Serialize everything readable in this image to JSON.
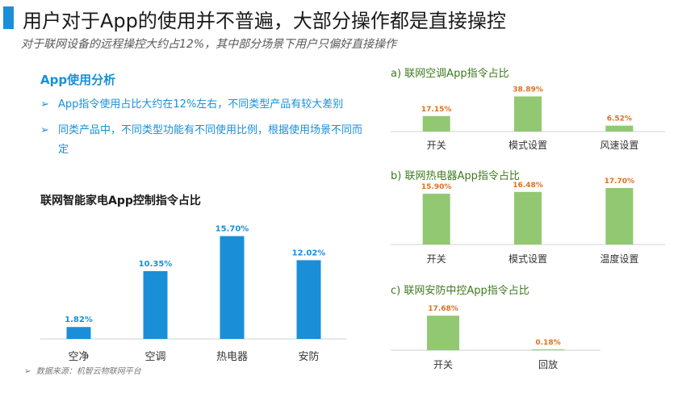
{
  "page": {
    "title": "用户对于App的使用并不普遍，大部分操作都是直接操控",
    "subtitle": "对于联网设备的远程操控大约占12%，其中部分场景下用户只偏好直接操作",
    "section_heading": "App使用分析",
    "bullets": [
      "Aрр指令使用占比大约在12%左右，不同类型产品有较大差别",
      "同类产品中，不同类型功能有不同使用比例，根据使用场景不同而定"
    ],
    "source": "数据来源：机智云物联网平台"
  },
  "colors": {
    "accent": "#1a8fd8",
    "green": "#92c872",
    "orange": "#e07020",
    "green_title": "#3d7a1e"
  },
  "chart_data": [
    {
      "id": "main",
      "type": "bar",
      "title": "联网智能家电App控制指令占比",
      "categories": [
        "空净",
        "空调",
        "热电器",
        "安防"
      ],
      "values": [
        1.82,
        10.35,
        15.7,
        12.02
      ],
      "labels": [
        "1.82%",
        "10.35%",
        "15.70%",
        "12.02%"
      ],
      "ylim": [
        0,
        17
      ]
    },
    {
      "id": "a",
      "type": "bar",
      "title": "a) 联网空调App指令占比",
      "categories": [
        "开关",
        "模式设置",
        "风速设置"
      ],
      "values": [
        17.15,
        38.89,
        6.52
      ],
      "labels": [
        "17.15%",
        "38.89%",
        "6.52%"
      ],
      "ylim": [
        0,
        42
      ]
    },
    {
      "id": "b",
      "type": "bar",
      "title": "b) 联网热电器App指令占比",
      "categories": [
        "开关",
        "模式设置",
        "温度设置"
      ],
      "values": [
        15.9,
        16.48,
        17.7
      ],
      "labels": [
        "15.90%",
        "16.48%",
        "17.70%"
      ],
      "ylim": [
        0,
        18.7
      ]
    },
    {
      "id": "c",
      "type": "bar",
      "title": "c) 联网安防中控App指令占比",
      "categories": [
        "开关",
        "回放"
      ],
      "values": [
        17.68,
        0.18
      ],
      "labels": [
        "17.68%",
        "0.18%"
      ],
      "ylim": [
        0,
        19
      ]
    }
  ]
}
